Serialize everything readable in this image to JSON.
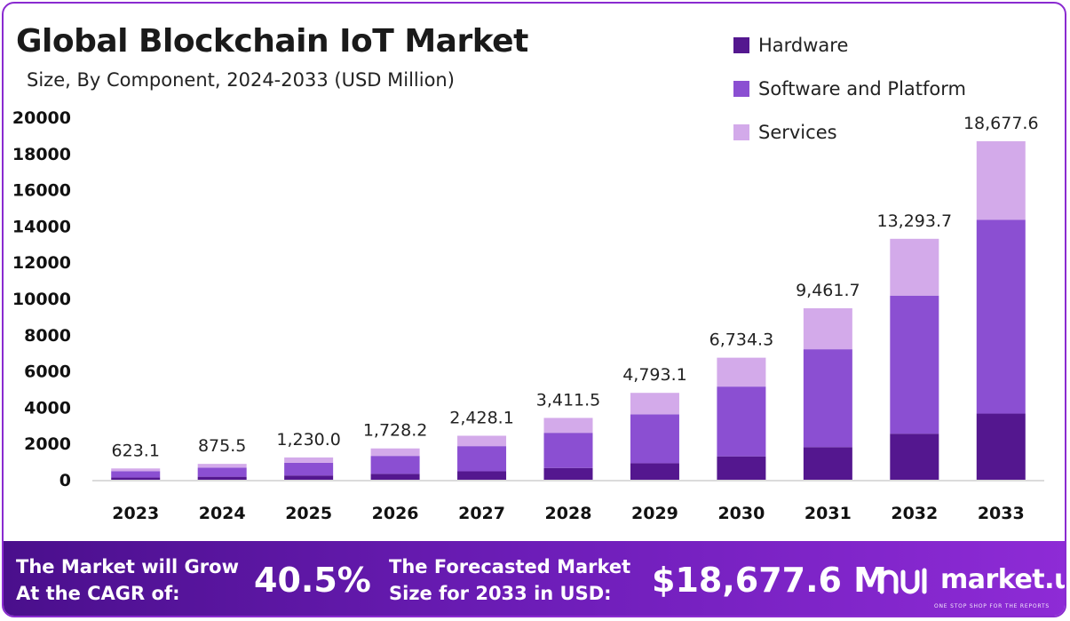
{
  "header": {
    "title": "Global Blockchain IoT Market",
    "subtitle": "Size, By Component, 2024-2033 (USD Million)"
  },
  "legend": [
    {
      "label": "Hardware",
      "color": "#54178f"
    },
    {
      "label": "Software and Platform",
      "color": "#8b4fd2"
    },
    {
      "label": "Services",
      "color": "#d3aaea"
    }
  ],
  "chart_data": {
    "type": "bar",
    "stacked": true,
    "title": "Global Blockchain IoT Market",
    "subtitle": "Size, By Component, 2024-2033 (USD Million)",
    "categories": [
      "2023",
      "2024",
      "2025",
      "2026",
      "2027",
      "2028",
      "2029",
      "2030",
      "2031",
      "2032",
      "2033"
    ],
    "series": [
      {
        "name": "Hardware",
        "color": "#54178f",
        "values": [
          120,
          165,
          235,
          330,
          465,
          650,
          910,
          1290,
          1800,
          2540,
          3650
        ]
      },
      {
        "name": "Software and Platform",
        "color": "#8b4fd2",
        "values": [
          355,
          500,
          700,
          985,
          1390,
          1940,
          2700,
          3850,
          5400,
          7620,
          10690
        ]
      },
      {
        "name": "Services",
        "color": "#d3aaea",
        "values": [
          148.1,
          210.5,
          295,
          413.2,
          573.1,
          821.5,
          1183.1,
          1594.3,
          2261.7,
          3133.7,
          4337.6
        ]
      }
    ],
    "totals": [
      623.1,
      875.5,
      1230.0,
      1728.2,
      2428.1,
      3411.5,
      4793.1,
      6734.3,
      9461.7,
      13293.7,
      18677.6
    ],
    "total_labels": [
      "623.1",
      "875.5",
      "1,230.0",
      "1,728.2",
      "2,428.1",
      "3,411.5",
      "4,793.1",
      "6,734.3",
      "9,461.7",
      "13,293.7",
      "18,677.6"
    ],
    "yticks": [
      "0",
      "2000",
      "4000",
      "6000",
      "8000",
      "10000",
      "12000",
      "14000",
      "16000",
      "18000",
      "20000"
    ],
    "ylim": [
      0,
      20000
    ],
    "xlabel": "",
    "ylabel": "",
    "legend_position": "top-right"
  },
  "footer": {
    "cagr_text_line1": "The Market will Grow",
    "cagr_text_line2": "At the CAGR of:",
    "cagr_value": "40.5%",
    "forecast_text_line1": "The Forecasted Market",
    "forecast_text_line2": "Size for 2033 in USD:",
    "forecast_value": "$18,677.6 M",
    "brand_name": "market.us",
    "brand_tagline": "ONE STOP SHOP FOR THE REPORTS"
  }
}
